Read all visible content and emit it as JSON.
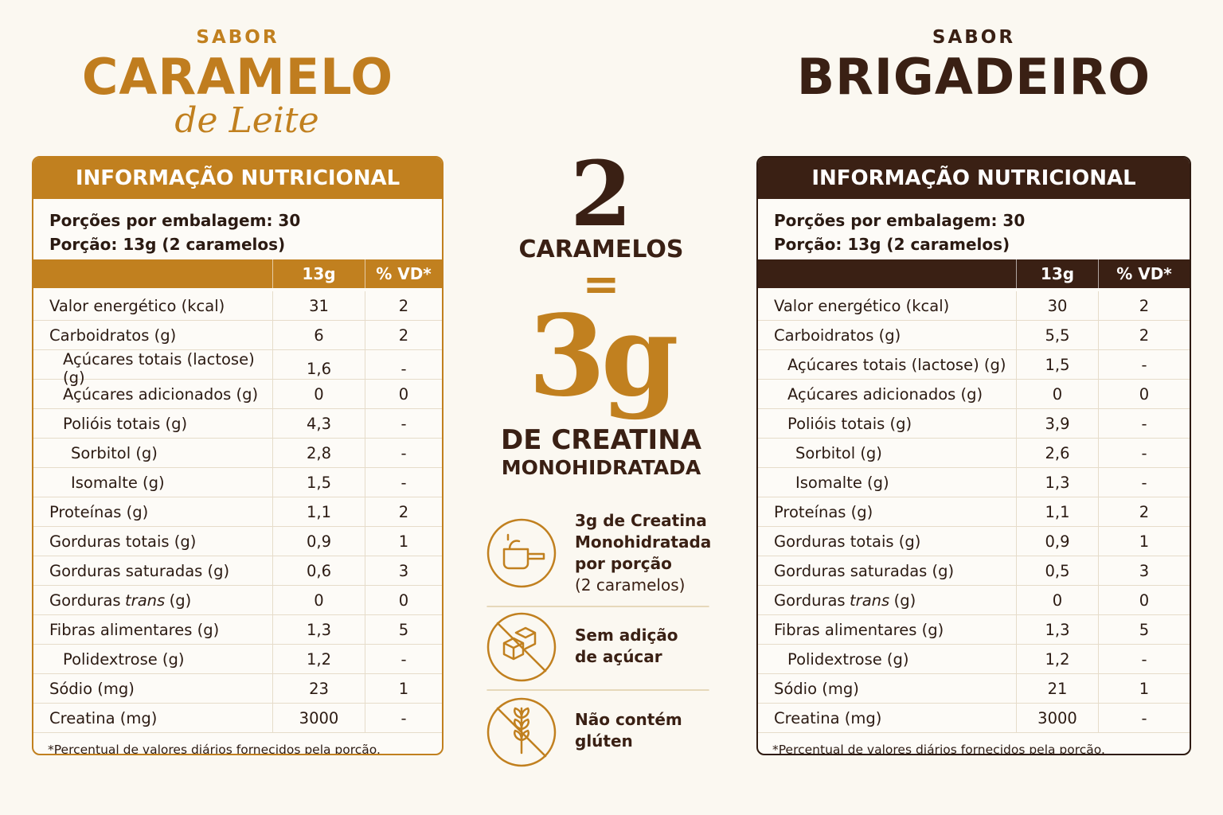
{
  "left": {
    "flavor_prefix": "SABOR",
    "flavor_name": "CARAMELO",
    "flavor_suffix": "de Leite",
    "table": {
      "title": "INFORMAÇÃO NUTRICIONAL",
      "servings_per_package": "Porções por embalagem: 30",
      "serving_size": "Porção: 13g (2 caramelos)",
      "columns": [
        "13g",
        "% VD*"
      ],
      "rows": [
        {
          "nutrient": "Valor energético (kcal)",
          "amount": "31",
          "dv": "2"
        },
        {
          "nutrient": "Carboidratos (g)",
          "amount": "6",
          "dv": "2",
          "sub": [
            {
              "nutrient": "Açúcares totais (lactose) (g)",
              "amount": "1,6",
              "dv": "-"
            },
            {
              "nutrient": "Açúcares adicionados (g)",
              "amount": "0",
              "dv": "0"
            },
            {
              "nutrient": "Polióis totais (g)",
              "amount": "4,3",
              "dv": "-",
              "sub": [
                {
                  "nutrient": "Sorbitol (g)",
                  "amount": "2,8",
                  "dv": "-"
                },
                {
                  "nutrient": "Isomalte (g)",
                  "amount": "1,5",
                  "dv": "-"
                }
              ]
            }
          ]
        },
        {
          "nutrient": "Proteínas (g)",
          "amount": "1,1",
          "dv": "2"
        },
        {
          "nutrient": "Gorduras totais (g)",
          "amount": "0,9",
          "dv": "1"
        },
        {
          "nutrient": "Gorduras saturadas (g)",
          "amount": "0,6",
          "dv": "3"
        },
        {
          "nutrient": [
            "Gorduras",
            "trans",
            "(g)"
          ],
          "amount": "0",
          "dv": "0"
        },
        {
          "nutrient": "Fibras alimentares (g)",
          "amount": "1,3",
          "dv": "5",
          "sub": [
            {
              "nutrient": "Polidextrose (g)",
              "amount": "1,2",
              "dv": "-"
            }
          ]
        },
        {
          "nutrient": "Sódio (mg)",
          "amount": "23",
          "dv": "1"
        },
        {
          "nutrient": "Creatina (mg)",
          "amount": "3000",
          "dv": "-"
        }
      ],
      "footnote": "*Percentual de valores diários fornecidos pela porção."
    }
  },
  "right": {
    "flavor_prefix": "SABOR",
    "flavor_name": "BRIGADEIRO",
    "table": {
      "title": "INFORMAÇÃO NUTRICIONAL",
      "servings_per_package": "Porções por embalagem: 30",
      "serving_size": "Porção: 13g (2 caramelos)",
      "columns": [
        "13g",
        "% VD*"
      ],
      "rows": [
        {
          "nutrient": "Valor energético (kcal)",
          "amount": "30",
          "dv": "2"
        },
        {
          "nutrient": "Carboidratos (g)",
          "amount": "5,5",
          "dv": "2",
          "sub": [
            {
              "nutrient": "Açúcares totais (lactose) (g)",
              "amount": "1,5",
              "dv": "-"
            },
            {
              "nutrient": "Açúcares adicionados (g)",
              "amount": "0",
              "dv": "0"
            },
            {
              "nutrient": "Polióis totais (g)",
              "amount": "3,9",
              "dv": "-",
              "sub": [
                {
                  "nutrient": "Sorbitol (g)",
                  "amount": "2,6",
                  "dv": "-"
                },
                {
                  "nutrient": "Isomalte (g)",
                  "amount": "1,3",
                  "dv": "-"
                }
              ]
            }
          ]
        },
        {
          "nutrient": "Proteínas (g)",
          "amount": "1,1",
          "dv": "2"
        },
        {
          "nutrient": "Gorduras totais (g)",
          "amount": "0,9",
          "dv": "1"
        },
        {
          "nutrient": "Gorduras saturadas (g)",
          "amount": "0,5",
          "dv": "3"
        },
        {
          "nutrient": [
            "Gorduras",
            "trans",
            "(g)"
          ],
          "amount": "0",
          "dv": "0"
        },
        {
          "nutrient": "Fibras alimentares (g)",
          "amount": "1,3",
          "dv": "5",
          "sub": [
            {
              "nutrient": "Polidextrose (g)",
              "amount": "1,2",
              "dv": "-"
            }
          ]
        },
        {
          "nutrient": "Sódio (mg)",
          "amount": "21",
          "dv": "1"
        },
        {
          "nutrient": "Creatina (mg)",
          "amount": "3000",
          "dv": "-"
        }
      ],
      "footnote": "*Percentual de valores diários fornecidos pela porção."
    }
  },
  "center": {
    "count": "2",
    "unit": "CARAMELOS",
    "equals": "=",
    "dose": "3g",
    "substance": "DE CREATINA",
    "substance_type": "MONOHIDRATADA",
    "features": [
      {
        "title": "3g de Creatina Monohidratada por porção",
        "note": "(2 caramelos)"
      },
      {
        "title": "Sem adição de açúcar"
      },
      {
        "title": "Não contém glúten"
      }
    ]
  }
}
